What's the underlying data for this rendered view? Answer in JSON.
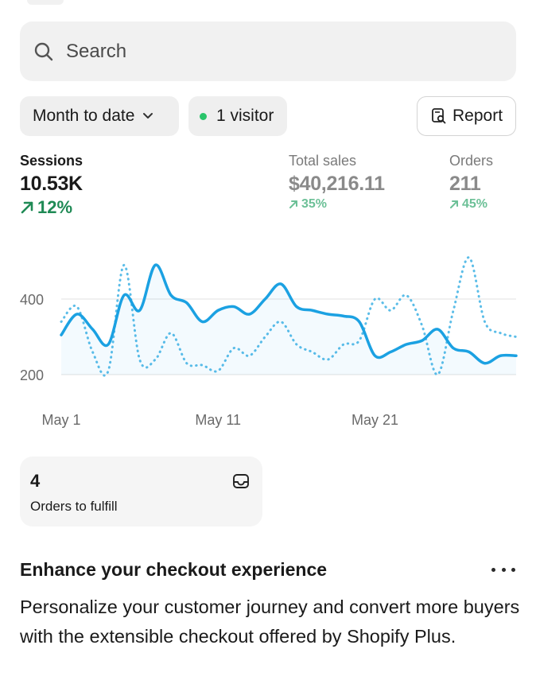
{
  "search": {
    "placeholder": "Search",
    "icon": "search-icon"
  },
  "filters": {
    "date_range": "Month to date",
    "visitors": "1 visitor",
    "visitor_dot_color": "#29c46a",
    "report_label": "Report"
  },
  "metrics": [
    {
      "label": "Sessions",
      "value": "10.53K",
      "change": "12%"
    },
    {
      "label": "Total sales",
      "value": "$40,216.11",
      "change": "35%"
    },
    {
      "label": "Orders",
      "value": "211",
      "change": "45%"
    }
  ],
  "chart_data": {
    "type": "line",
    "x_tick_labels": [
      "May 1",
      "May 11",
      "May 21"
    ],
    "y_tick_labels": [
      "400",
      "200"
    ],
    "ylim": [
      200,
      400
    ],
    "grid": true,
    "series": [
      {
        "style": "solid",
        "color": "#1ba1e2",
        "x": [
          0,
          1,
          2,
          3,
          4,
          5,
          6,
          7,
          8,
          9,
          10,
          11,
          12,
          13,
          14,
          15,
          16,
          17,
          18,
          19,
          20,
          21,
          22,
          23,
          24,
          25,
          26,
          27,
          28,
          29
        ],
        "values": [
          305,
          360,
          320,
          280,
          410,
          370,
          490,
          410,
          390,
          340,
          370,
          380,
          360,
          400,
          440,
          380,
          370,
          360,
          355,
          340,
          250,
          260,
          280,
          290,
          320,
          270,
          260,
          230,
          250,
          250
        ]
      },
      {
        "style": "dotted",
        "color": "#5bbde8",
        "x": [
          0,
          1,
          2,
          3,
          4,
          5,
          6,
          7,
          8,
          9,
          10,
          11,
          12,
          13,
          14,
          15,
          16,
          17,
          18,
          19,
          20,
          21,
          22,
          23,
          24,
          25,
          26,
          27,
          28,
          29
        ],
        "values": [
          340,
          380,
          260,
          210,
          490,
          240,
          240,
          310,
          230,
          225,
          210,
          270,
          250,
          300,
          340,
          280,
          260,
          240,
          280,
          290,
          400,
          370,
          410,
          330,
          200,
          370,
          510,
          340,
          310,
          300
        ]
      }
    ]
  },
  "fulfill_card": {
    "count": "4",
    "label": "Orders to fulfill",
    "icon": "inbox-icon"
  },
  "promo": {
    "title": "Enhance your checkout experience",
    "body": "Personalize your customer journey and convert more buyers with the extensible checkout offered by Shopify Plus."
  }
}
